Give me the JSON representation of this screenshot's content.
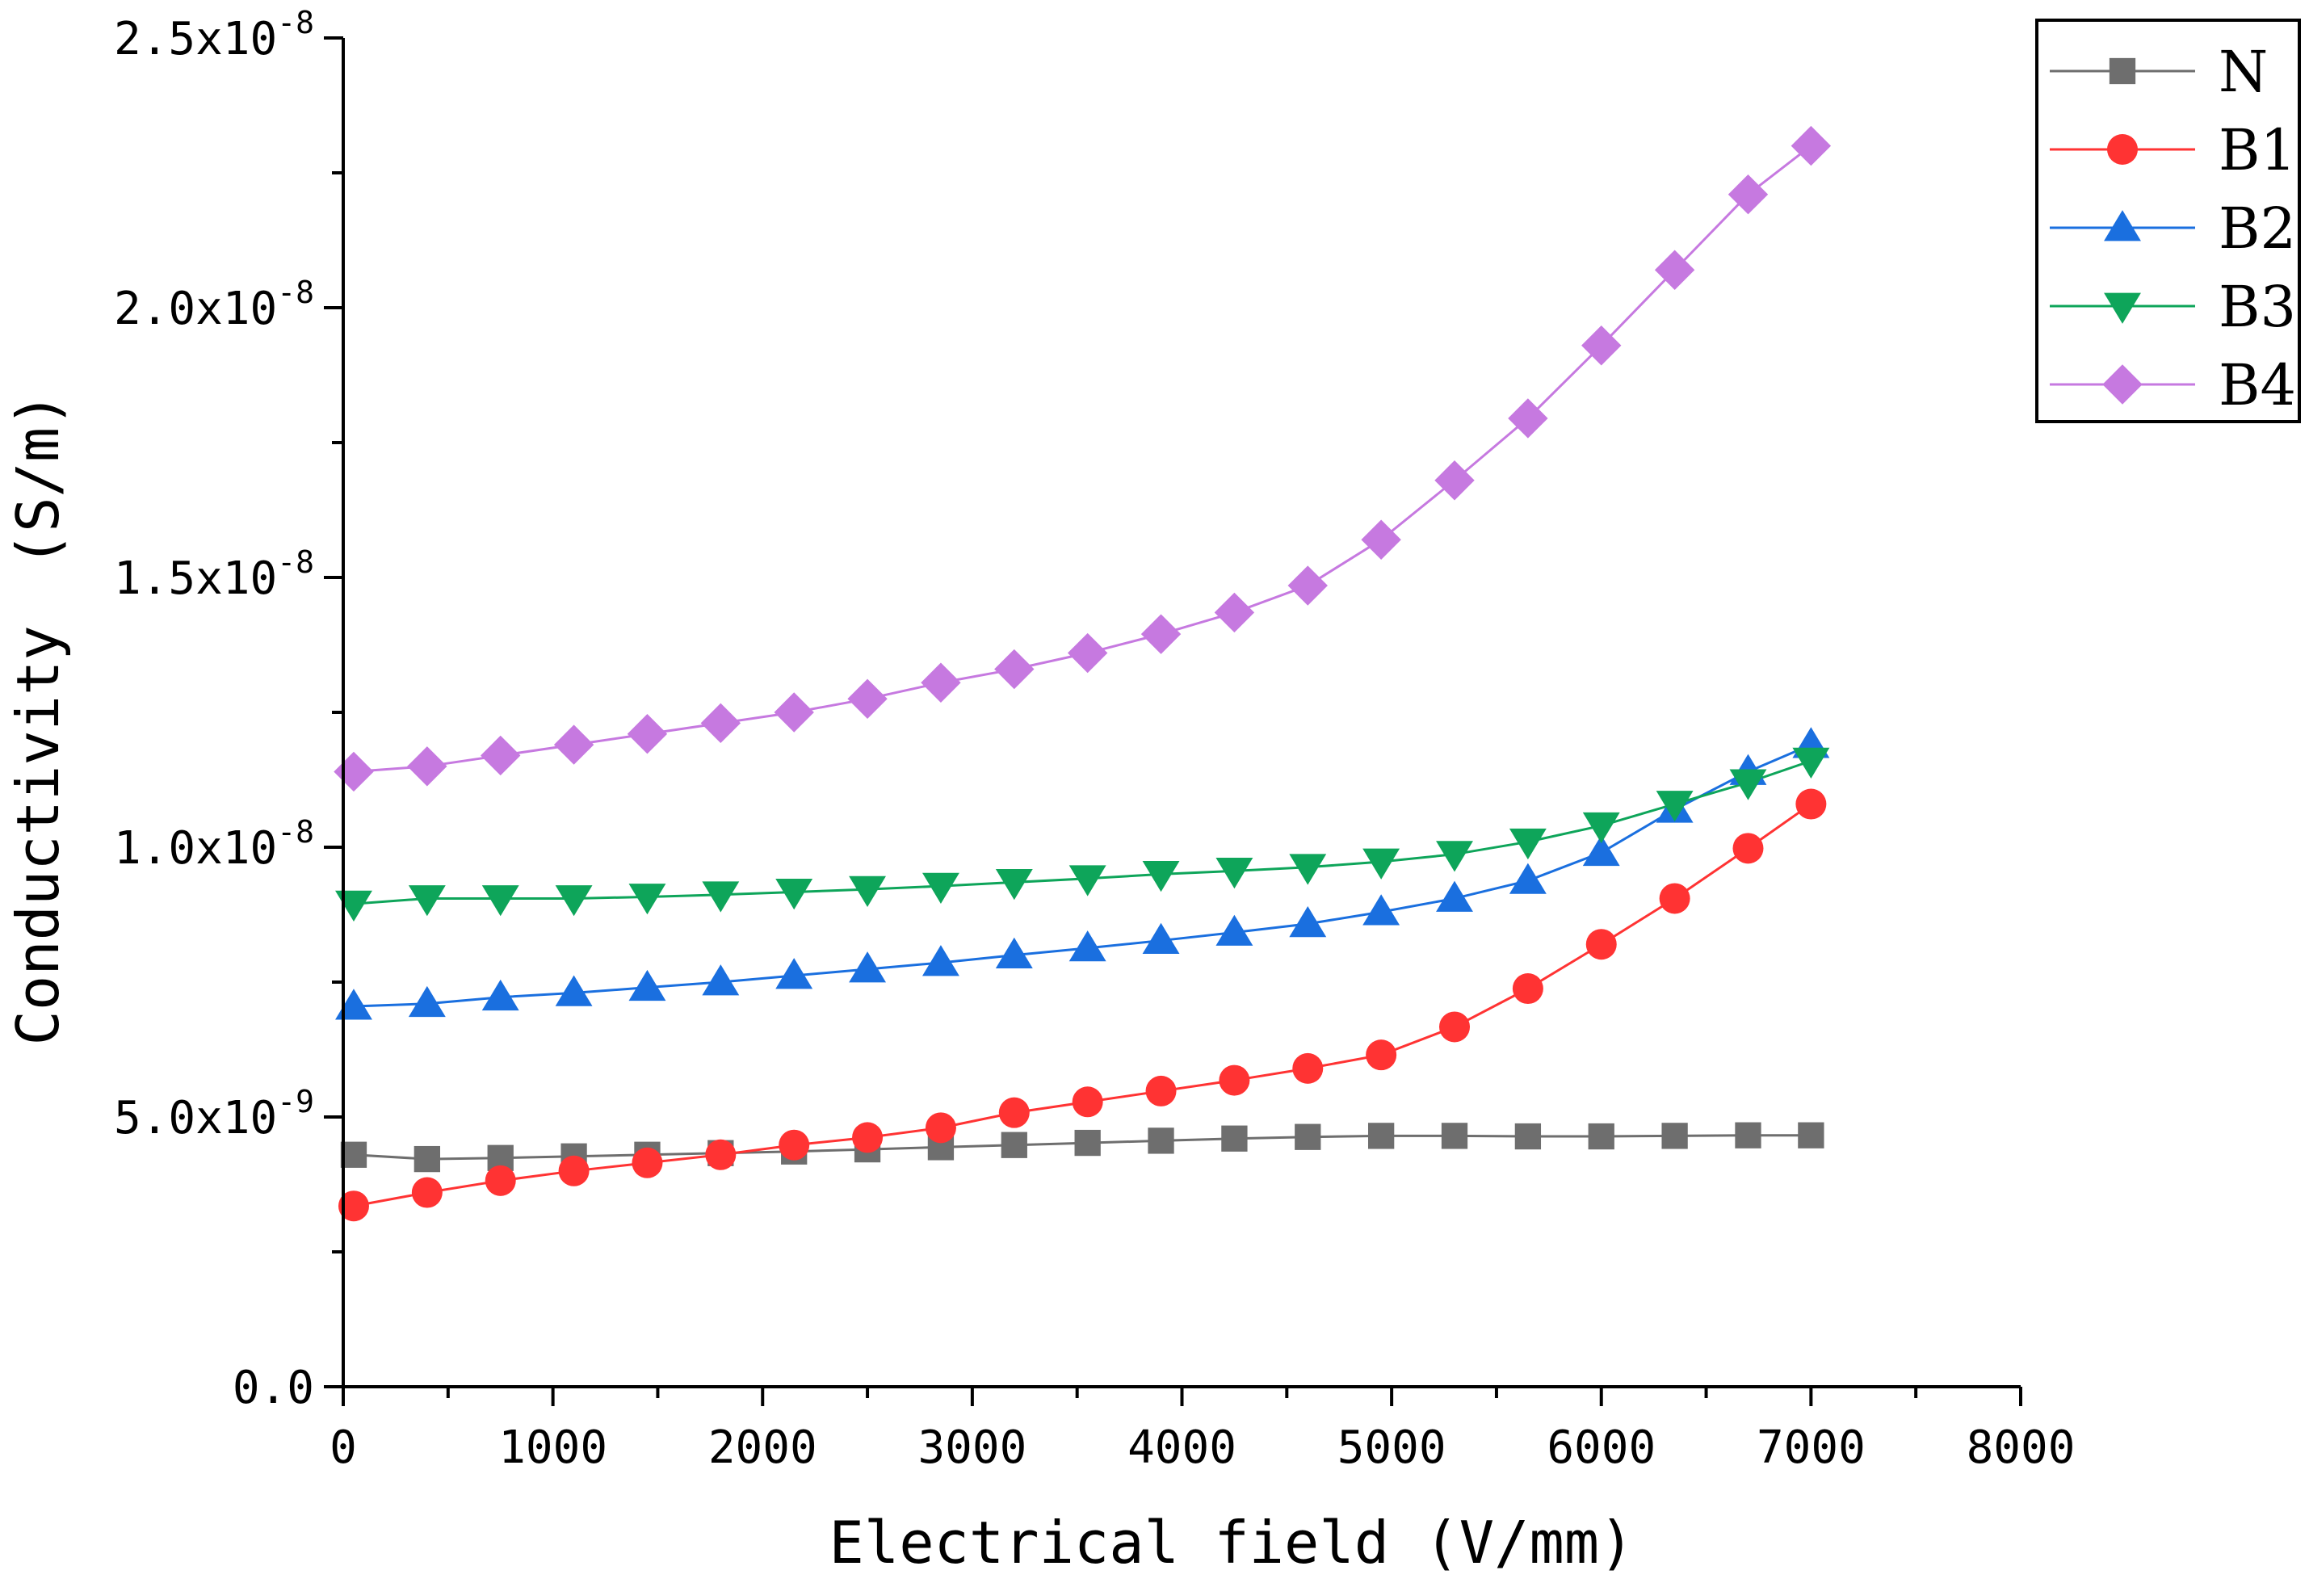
{
  "chart_data": {
    "type": "line",
    "title": "",
    "xlabel": "Electrical field (V/mm)",
    "ylabel": "Conductivity　(S/m)",
    "xlim": [
      0,
      8000
    ],
    "ylim": [
      0,
      2.5e-08
    ],
    "x_ticks": [
      0,
      1000,
      2000,
      3000,
      4000,
      5000,
      6000,
      7000,
      8000
    ],
    "x_tick_labels": [
      "0",
      "1000",
      "2000",
      "3000",
      "4000",
      "5000",
      "6000",
      "7000",
      "8000"
    ],
    "y_ticks": [
      0,
      5e-09,
      1e-08,
      1.5e-08,
      2e-08,
      2.5e-08
    ],
    "y_tick_labels": [
      {
        "mantissa": "0.0",
        "exponent": ""
      },
      {
        "mantissa": "5.0x10",
        "exponent": "-9"
      },
      {
        "mantissa": "1.0x10",
        "exponent": "-8"
      },
      {
        "mantissa": "1.5x10",
        "exponent": "-8"
      },
      {
        "mantissa": "2.0x10",
        "exponent": "-8"
      },
      {
        "mantissa": "2.5x10",
        "exponent": "-8"
      }
    ],
    "grid": false,
    "legend_position": "top-right",
    "x": [
      50,
      400,
      750,
      1100,
      1450,
      1800,
      2150,
      2500,
      2850,
      3200,
      3550,
      3900,
      4250,
      4600,
      4950,
      5300,
      5650,
      6000,
      6350,
      6700,
      7000
    ],
    "series": [
      {
        "name": "N",
        "color": "#6e6e6e",
        "marker": "square",
        "values": [
          4.3e-09,
          4.22e-09,
          4.24e-09,
          4.27e-09,
          4.3e-09,
          4.33e-09,
          4.36e-09,
          4.4e-09,
          4.44e-09,
          4.48e-09,
          4.52e-09,
          4.56e-09,
          4.6e-09,
          4.63e-09,
          4.65e-09,
          4.65e-09,
          4.64e-09,
          4.64e-09,
          4.65e-09,
          4.66e-09,
          4.66e-09
        ]
      },
      {
        "name": "B1",
        "color": "#ff3333",
        "marker": "circle",
        "values": [
          3.35e-09,
          3.6e-09,
          3.82e-09,
          4e-09,
          4.15e-09,
          4.3e-09,
          4.48e-09,
          4.62e-09,
          4.8e-09,
          5.08e-09,
          5.28e-09,
          5.48e-09,
          5.68e-09,
          5.9e-09,
          6.15e-09,
          6.67e-09,
          7.38e-09,
          8.2e-09,
          9.05e-09,
          9.98e-09,
          1.08e-08
        ]
      },
      {
        "name": "B2",
        "color": "#1a6fdf",
        "marker": "triangle-up",
        "values": [
          7.05e-09,
          7.1e-09,
          7.22e-09,
          7.3e-09,
          7.4e-09,
          7.5e-09,
          7.62e-09,
          7.74e-09,
          7.86e-09,
          8e-09,
          8.13e-09,
          8.27e-09,
          8.42e-09,
          8.58e-09,
          8.8e-09,
          9.05e-09,
          9.38e-09,
          9.9e-09,
          1.07e-08,
          1.14e-08,
          1.19e-08
        ]
      },
      {
        "name": "B3",
        "color": "#0ea55a",
        "marker": "triangle-down",
        "values": [
          8.95e-09,
          9.05e-09,
          9.05e-09,
          9.05e-09,
          9.08e-09,
          9.12e-09,
          9.17e-09,
          9.22e-09,
          9.28e-09,
          9.35e-09,
          9.42e-09,
          9.5e-09,
          9.56e-09,
          9.63e-09,
          9.73e-09,
          9.87e-09,
          1.01e-08,
          1.04e-08,
          1.08e-08,
          1.12e-08,
          1.16e-08
        ]
      },
      {
        "name": "B4",
        "color": "#c679e0",
        "marker": "diamond",
        "values": [
          1.14e-08,
          1.15e-08,
          1.17e-08,
          1.19e-08,
          1.21e-08,
          1.23e-08,
          1.25e-08,
          1.275e-08,
          1.305e-08,
          1.33e-08,
          1.36e-08,
          1.395e-08,
          1.435e-08,
          1.485e-08,
          1.57e-08,
          1.68e-08,
          1.795e-08,
          1.93e-08,
          2.07e-08,
          2.21e-08,
          2.3e-08
        ]
      }
    ]
  }
}
